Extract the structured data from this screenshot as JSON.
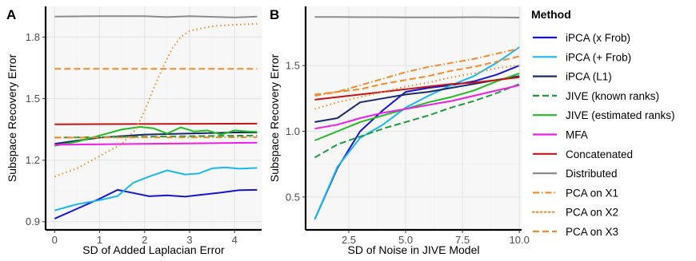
{
  "chart_data": [
    {
      "panel_tag": "A",
      "type": "line",
      "xlabel": "SD of Added Laplacian Error",
      "ylabel": "Subspace Recovery Error",
      "xlim": [
        -0.2,
        4.6
      ],
      "ylim": [
        0.86,
        1.95
      ],
      "xticks": [
        0,
        1,
        2,
        3,
        4
      ],
      "yticks": [
        0.9,
        1.2,
        1.5,
        1.8
      ],
      "ytick_labels": [
        "0.9",
        "1.2",
        "1.5",
        "1.8"
      ],
      "grid": true,
      "series": [
        {
          "key": "ipca_xfrob",
          "x": [
            0,
            0.5,
            1,
            1.4,
            1.75,
            2.1,
            2.5,
            2.9,
            3.3,
            3.7,
            4.1,
            4.5
          ],
          "y": [
            0.915,
            0.963,
            1.012,
            1.055,
            1.04,
            1.024,
            1.028,
            1.022,
            1.032,
            1.042,
            1.054,
            1.055
          ]
        },
        {
          "key": "ipca_pfrob",
          "x": [
            0,
            0.5,
            1,
            1.4,
            1.75,
            2.1,
            2.5,
            2.9,
            3.2,
            3.5,
            3.8,
            4.1,
            4.5
          ],
          "y": [
            0.955,
            0.985,
            1.005,
            1.025,
            1.09,
            1.12,
            1.15,
            1.13,
            1.135,
            1.16,
            1.165,
            1.158,
            1.162
          ]
        },
        {
          "key": "ipca_l1",
          "x": [
            0,
            1,
            2,
            3,
            4,
            4.5
          ],
          "y": [
            1.28,
            1.31,
            1.325,
            1.33,
            1.335,
            1.335
          ]
        },
        {
          "key": "jive_known",
          "x": [
            0,
            4.5
          ],
          "y": [
            1.31,
            1.32
          ]
        },
        {
          "key": "jive_est",
          "x": [
            0,
            0.5,
            1,
            1.5,
            1.9,
            2.2,
            2.5,
            2.8,
            3.1,
            3.4,
            3.7,
            4.0,
            4.3,
            4.5
          ],
          "y": [
            1.27,
            1.29,
            1.32,
            1.35,
            1.362,
            1.355,
            1.33,
            1.36,
            1.34,
            1.345,
            1.325,
            1.345,
            1.34,
            1.338
          ]
        },
        {
          "key": "mfa",
          "x": [
            0,
            4.5
          ],
          "y": [
            1.275,
            1.285
          ]
        },
        {
          "key": "concat",
          "x": [
            0,
            4.5
          ],
          "y": [
            1.375,
            1.378
          ]
        },
        {
          "key": "distributed",
          "x": [
            0,
            1,
            2,
            2.5,
            3,
            4,
            4.5
          ],
          "y": [
            1.9,
            1.902,
            1.902,
            1.898,
            1.902,
            1.896,
            1.9
          ]
        },
        {
          "key": "pca_x1",
          "x": [
            0,
            4.5
          ],
          "y": [
            1.31,
            1.312
          ]
        },
        {
          "key": "pca_x2",
          "x": [
            0,
            0.5,
            1,
            1.5,
            1.8,
            2.0,
            2.2,
            2.4,
            2.6,
            2.8,
            3.0,
            3.3,
            3.6,
            4.0,
            4.5
          ],
          "y": [
            1.12,
            1.16,
            1.22,
            1.28,
            1.35,
            1.44,
            1.55,
            1.65,
            1.74,
            1.8,
            1.83,
            1.845,
            1.855,
            1.86,
            1.865
          ]
        },
        {
          "key": "pca_x3",
          "x": [
            0,
            4.5
          ],
          "y": [
            1.645,
            1.645
          ]
        }
      ]
    },
    {
      "panel_tag": "B",
      "type": "line",
      "xlabel": "SD of Noise in JIVE Model",
      "ylabel": "Subspace Recovery Error",
      "xlim": [
        0.6,
        10.1
      ],
      "ylim": [
        0.25,
        1.95
      ],
      "xticks": [
        2.5,
        5.0,
        7.5,
        10.0
      ],
      "xtick_labels": [
        "2.5",
        "5.0",
        "7.5",
        "10.0"
      ],
      "yticks": [
        0.5,
        1.0,
        1.5
      ],
      "ytick_labels": [
        "0.5",
        "1.0",
        "1.5"
      ],
      "grid": true,
      "series": [
        {
          "key": "ipca_xfrob",
          "x": [
            1,
            2,
            3,
            4,
            5,
            6,
            7,
            8,
            9,
            10
          ],
          "y": [
            0.33,
            0.72,
            1.0,
            1.16,
            1.3,
            1.33,
            1.35,
            1.38,
            1.43,
            1.5
          ]
        },
        {
          "key": "ipca_pfrob",
          "x": [
            1,
            2,
            3,
            4,
            5,
            6,
            7,
            8,
            9,
            10
          ],
          "y": [
            0.33,
            0.73,
            0.95,
            1.05,
            1.18,
            1.27,
            1.35,
            1.42,
            1.52,
            1.64
          ]
        },
        {
          "key": "ipca_l1",
          "x": [
            1,
            2,
            3,
            4,
            5,
            6,
            7,
            8,
            9,
            10
          ],
          "y": [
            1.07,
            1.1,
            1.22,
            1.25,
            1.28,
            1.3,
            1.33,
            1.36,
            1.39,
            1.42
          ]
        },
        {
          "key": "jive_known",
          "x": [
            1,
            2,
            3,
            4,
            5,
            6,
            7,
            8,
            9,
            10
          ],
          "y": [
            0.8,
            0.9,
            0.96,
            1.02,
            1.07,
            1.12,
            1.18,
            1.23,
            1.29,
            1.36
          ]
        },
        {
          "key": "jive_est",
          "x": [
            1,
            2,
            3,
            4,
            5,
            6,
            7,
            8,
            9,
            10
          ],
          "y": [
            0.93,
            1.0,
            1.07,
            1.12,
            1.17,
            1.22,
            1.26,
            1.31,
            1.38,
            1.44
          ]
        },
        {
          "key": "mfa",
          "x": [
            1,
            2,
            3,
            4,
            5,
            6,
            7,
            8,
            9,
            10
          ],
          "y": [
            1.02,
            1.05,
            1.1,
            1.14,
            1.17,
            1.2,
            1.23,
            1.27,
            1.31,
            1.35
          ]
        },
        {
          "key": "concat",
          "x": [
            1,
            2,
            3,
            4,
            5,
            6,
            7,
            8,
            9,
            10
          ],
          "y": [
            1.24,
            1.26,
            1.28,
            1.3,
            1.32,
            1.34,
            1.36,
            1.37,
            1.39,
            1.41
          ]
        },
        {
          "key": "distributed",
          "x": [
            1,
            2,
            3,
            4,
            5,
            6,
            7,
            8,
            9,
            10
          ],
          "y": [
            1.87,
            1.87,
            1.868,
            1.868,
            1.866,
            1.866,
            1.866,
            1.868,
            1.866,
            1.865
          ]
        },
        {
          "key": "pca_x1",
          "x": [
            1,
            2,
            3,
            4,
            5,
            6,
            7,
            8,
            9,
            10
          ],
          "y": [
            1.27,
            1.3,
            1.35,
            1.4,
            1.45,
            1.49,
            1.52,
            1.55,
            1.59,
            1.63
          ]
        },
        {
          "key": "pca_x2",
          "x": [
            1,
            2,
            3,
            4,
            5,
            6,
            7,
            8,
            9,
            10
          ],
          "y": [
            1.17,
            1.22,
            1.26,
            1.3,
            1.34,
            1.37,
            1.41,
            1.44,
            1.48,
            1.5
          ]
        },
        {
          "key": "pca_x3",
          "x": [
            1,
            2,
            3,
            4,
            5,
            6,
            7,
            8,
            9,
            10
          ],
          "y": [
            1.28,
            1.3,
            1.32,
            1.36,
            1.39,
            1.42,
            1.46,
            1.49,
            1.53,
            1.57
          ]
        }
      ]
    }
  ],
  "legend": {
    "title": "Method",
    "placement": "right",
    "items": [
      {
        "key": "ipca_xfrob",
        "label": "iPCA (x Frob)",
        "color": "#1515d6",
        "dash": "solid"
      },
      {
        "key": "ipca_pfrob",
        "label": "iPCA (+ Frob)",
        "color": "#1ab8f0",
        "dash": "solid"
      },
      {
        "key": "ipca_l1",
        "label": "iPCA (L1)",
        "color": "#1b2a6b",
        "dash": "solid"
      },
      {
        "key": "jive_known",
        "label": "JIVE (known ranks)",
        "color": "#1e9e3a",
        "dash": "dashed"
      },
      {
        "key": "jive_est",
        "label": "JIVE (estimated ranks)",
        "color": "#22bb22",
        "dash": "solid"
      },
      {
        "key": "mfa",
        "label": "MFA",
        "color": "#ee1ee6",
        "dash": "solid"
      },
      {
        "key": "concat",
        "label": "Concatenated",
        "color": "#c41414",
        "dash": "solid"
      },
      {
        "key": "distributed",
        "label": "Distributed",
        "color": "#8c8c8c",
        "dash": "solid"
      },
      {
        "key": "pca_x1",
        "label": "PCA on X1",
        "color": "#f28c28",
        "dash": "dashdot"
      },
      {
        "key": "pca_x2",
        "label": "PCA on X2",
        "color": "#f28c28",
        "dash": "dotted"
      },
      {
        "key": "pca_x3",
        "label": "PCA on X3",
        "color": "#f28c28",
        "dash": "dashed"
      }
    ]
  }
}
